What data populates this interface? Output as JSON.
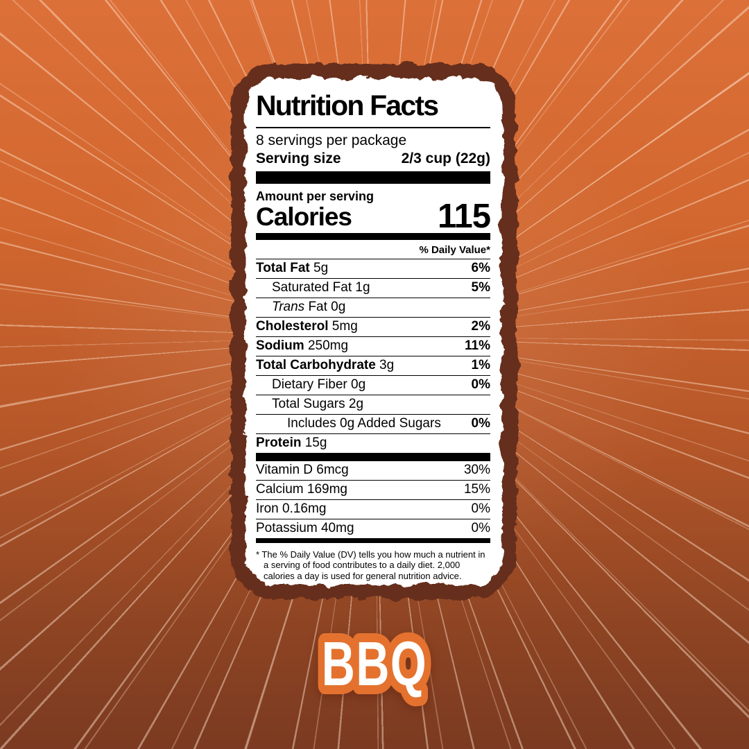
{
  "background": {
    "top_color": "#dc7039",
    "bottom_color": "#7b3a21",
    "ray_color": "#ffe4cd",
    "frame_color": "#662e1b",
    "paper_color": "#ffffff"
  },
  "label": {
    "title": "Nutrition Facts",
    "servings_per_package": "8 servings per package",
    "serving_size_label": "Serving size",
    "serving_size_value": "2/3 cup (22g)",
    "amount_per_serving": "Amount per serving",
    "calories_label": "Calories",
    "calories_value": "115",
    "daily_value_header": "% Daily Value*",
    "rows": [
      {
        "bold": "Total Fat",
        "rest": " 5g",
        "dv": "6%"
      },
      {
        "rest": "Saturated Fat 1g",
        "dv": "5%"
      },
      {
        "italic": "Trans",
        "rest": " Fat 0g",
        "dv": ""
      },
      {
        "bold": "Cholesterol",
        "rest": " 5mg",
        "dv": "2%"
      },
      {
        "bold": "Sodium",
        "rest": " 250mg",
        "dv": "11%"
      },
      {
        "bold": "Total Carbohydrate",
        "rest": " 3g",
        "dv": "1%"
      },
      {
        "rest": "Dietary Fiber 0g",
        "dv": "0%"
      },
      {
        "rest": "Total Sugars 2g",
        "dv": ""
      },
      {
        "rest": "Includes 0g Added Sugars",
        "dv": "0%"
      },
      {
        "bold": "Protein",
        "rest": " 15g",
        "dv": ""
      }
    ],
    "vitamins": [
      {
        "name": "Vitamin D 6mcg",
        "dv": "30%"
      },
      {
        "name": "Calcium 169mg",
        "dv": "15%"
      },
      {
        "name": "Iron 0.16mg",
        "dv": "0%"
      },
      {
        "name": "Potassium 40mg",
        "dv": "0%"
      }
    ],
    "footnote": "* The % Daily Value (DV) tells you how much a nutrient in a serving of food contributes to a daily diet. 2,000 calories a day is used for general nutrition advice."
  },
  "caption": {
    "text": "BBQ",
    "fill_color": "#ffffff",
    "outline_color": "#e4722e"
  }
}
